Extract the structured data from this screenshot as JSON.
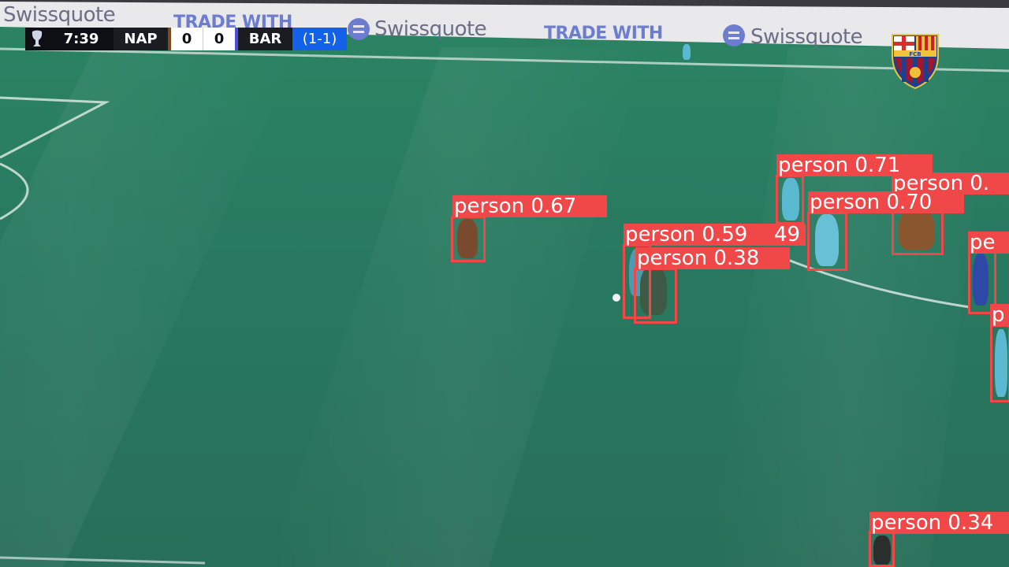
{
  "colors": {
    "pitch": "#2a7f64",
    "detection": "#f04848",
    "label_text": "#ffffff"
  },
  "ad_board": {
    "texts": [
      "Swissquote",
      "TRADE WITH",
      "Swissquote",
      "TRADE WITH",
      "Swissquote"
    ]
  },
  "scoreboard": {
    "competition_icon": "europa-league-trophy-icon",
    "clock": "7:39",
    "home_team": "NAP",
    "home_score": "0",
    "away_score": "0",
    "away_team": "BAR",
    "aggregate": "(1-1)"
  },
  "crest": {
    "icon": "fc-barcelona-crest-icon",
    "text": "FCB"
  },
  "detections": [
    {
      "label": "person 0.67"
    },
    {
      "label": "person 0.71"
    },
    {
      "label": "person 0."
    },
    {
      "label": "person 0.70"
    },
    {
      "label": "person 0.59"
    },
    {
      "label": "49"
    },
    {
      "label": "person 0.38"
    },
    {
      "label": "pe"
    },
    {
      "label": "p"
    },
    {
      "label": "person 0.34"
    }
  ]
}
